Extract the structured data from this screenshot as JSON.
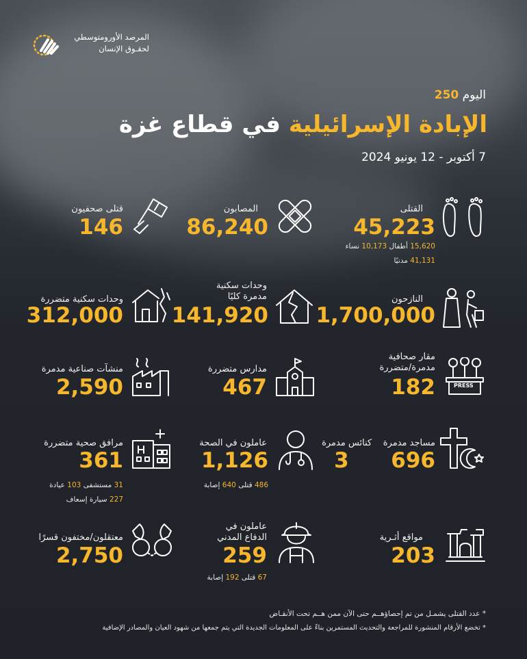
{
  "logo": {
    "line1": "المرصد الأورومتوسطي",
    "line2": "لحقـوق الإنسان"
  },
  "header": {
    "day_number": "250",
    "day_label": "اليوم",
    "title_highlight": "الإبادة الإسرائيلية",
    "title_rest": "في قطاع غزة",
    "date_range": "7 أكتوبر - 12 يونيو 2024"
  },
  "stats": {
    "killed": {
      "label": "القتلى",
      "value": "45,223",
      "children_value": "15,620",
      "children_label": "أطفال",
      "women_value": "10,173",
      "women_label": "نساء",
      "civilians_value": "41,131",
      "civilians_label": "مدنيًا"
    },
    "injured": {
      "label": "المصابون",
      "value": "86,240"
    },
    "journalists": {
      "label": "قتلى صحفيون",
      "value": "146"
    },
    "displaced": {
      "label": "النازحون",
      "value": "1,700,000"
    },
    "destroyed_units": {
      "label_line1": "وحدات سكنية",
      "label_line2": "مدمرة كليًا",
      "value": "141,920"
    },
    "damaged_units": {
      "label": "وحدات سكنية متضررة",
      "value": "312,000"
    },
    "press": {
      "label_line1": "مقار صحافية",
      "label_line2": "مدمرة/متضررة",
      "value": "182",
      "badge": "PRESS"
    },
    "schools": {
      "label": "مدارس متضررة",
      "value": "467"
    },
    "factories": {
      "label": "منشآت صناعية مدمرة",
      "value": "2,590"
    },
    "worship": {
      "mosques_label": "مساجد مدمرة",
      "churches_label": "كنائس مدمرة",
      "mosques_value": "696",
      "churches_value": "3"
    },
    "health_workers": {
      "label": "عاملون في الصحة",
      "value": "1,126",
      "killed_value": "486",
      "killed_label": "قتلى",
      "injured_value": "640",
      "injured_label": "إصابة"
    },
    "health_facilities": {
      "label": "مرافق صحية متضررة",
      "value": "361",
      "hospitals_value": "31",
      "hospitals_label": "مستشفى",
      "clinics_value": "103",
      "clinics_label": "عيادة",
      "ambulances_value": "227",
      "ambulances_label": "سيارة إسعاف"
    },
    "heritage": {
      "label": "مواقع أثـرية",
      "value": "203"
    },
    "civil_defense": {
      "label_line1": "عاملون في",
      "label_line2": "الدفاع المدني",
      "value": "259",
      "killed_value": "67",
      "killed_label": "قتلى",
      "injured_value": "192",
      "injured_label": "إصابة"
    },
    "detained": {
      "label": "معتقلون/مختفون قسرًا",
      "value": "2,750"
    }
  },
  "notes": {
    "note1": "* عدد القتلى يشمـل من تم إحصاؤهــم حتى الآن ممن هــم تحت الأنقـاض",
    "note2": "* تخضع الأرقام المنشورة للمراجعة والتحديث المستمرين بناءً على المعلومات الجديدة التي يتم جمعها من شهود العيان والمصادر الإضافية"
  },
  "colors": {
    "accent": "#f6b72c",
    "text": "#ffffff",
    "background": "#23272d"
  },
  "icons": [
    "hands-logo-icon",
    "footprints-icon",
    "bandage-icon",
    "press-mic-icon",
    "displaced-people-icon",
    "destroyed-house-icon",
    "damaged-house-icon",
    "press-podium-icon",
    "school-icon",
    "factory-icon",
    "cross-crescent-icon",
    "doctor-icon",
    "hospital-icon",
    "ruins-icon",
    "firefighter-icon",
    "handcuffs-icon"
  ]
}
